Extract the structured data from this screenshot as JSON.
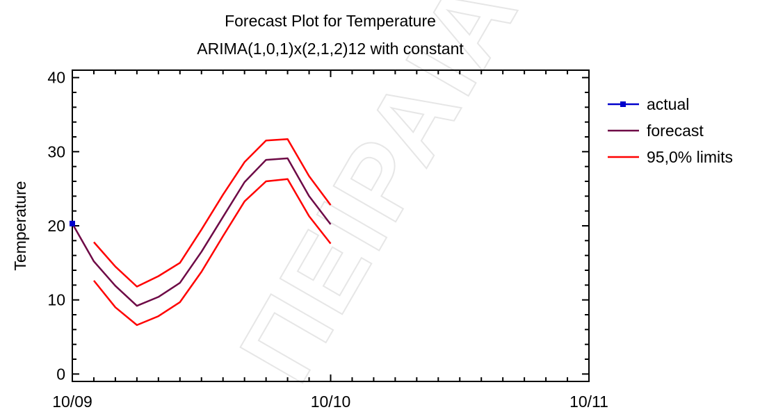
{
  "chart_data": {
    "type": "line",
    "title": "Forecast Plot for Temperature",
    "subtitle": "ARIMA(1,0,1)x(2,1,2)12 with constant",
    "xlabel": "",
    "ylabel": "Temperature",
    "ylim": [
      -1,
      41
    ],
    "xlim": [
      0,
      24
    ],
    "yticks": [
      0,
      10,
      20,
      30,
      40
    ],
    "xticks": [
      {
        "x": 0,
        "label": "10/09"
      },
      {
        "x": 12,
        "label": "10/10"
      },
      {
        "x": 24,
        "label": "10/11"
      }
    ],
    "legend_position": "right",
    "series": [
      {
        "name": "actual",
        "color": "#0000cc",
        "marker": "square",
        "x": [
          0
        ],
        "y": [
          20.3
        ]
      },
      {
        "name": "forecast",
        "color": "#6e0a46",
        "marker": "none",
        "x": [
          0,
          1,
          2,
          3,
          4,
          5,
          6,
          7,
          8,
          9,
          10,
          11,
          12
        ],
        "y": [
          20.3,
          15.2,
          11.9,
          9.2,
          10.4,
          12.3,
          16.5,
          21.2,
          25.9,
          28.9,
          29.1,
          24.0,
          20.2
        ]
      },
      {
        "name": "95,0% limits",
        "color": "#ff0000",
        "marker": "none",
        "x": [
          1,
          2,
          3,
          4,
          5,
          6,
          7,
          8,
          9,
          10,
          11,
          12
        ],
        "y": [
          17.8,
          14.5,
          11.8,
          13.2,
          15.0,
          19.5,
          24.2,
          28.6,
          31.5,
          31.7,
          26.7,
          22.8
        ]
      },
      {
        "name": "",
        "color": "#ff0000",
        "marker": "none",
        "x": [
          1,
          2,
          3,
          4,
          5,
          6,
          7,
          8,
          9,
          10,
          11,
          12
        ],
        "y": [
          12.6,
          9.0,
          6.6,
          7.8,
          9.7,
          13.8,
          18.6,
          23.3,
          26.0,
          26.3,
          21.3,
          17.6
        ]
      }
    ],
    "watermark": "ΠΕΙΡΑΙΑ"
  }
}
